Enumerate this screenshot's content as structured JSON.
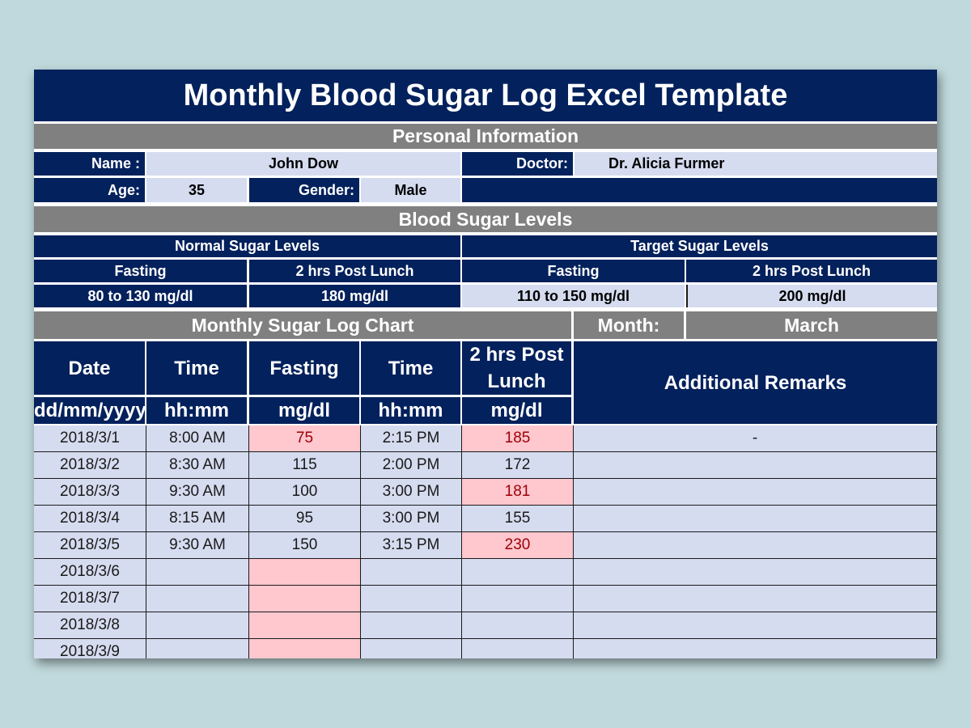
{
  "title": "Monthly Blood Sugar Log Excel Template",
  "personal": {
    "section_title": "Personal Information",
    "name_label": "Name :",
    "name_value": "John Dow",
    "doctor_label": "Doctor:",
    "doctor_value": "Dr. Alicia Furmer",
    "age_label": "Age:",
    "age_value": "35",
    "gender_label": "Gender:",
    "gender_value": "Male"
  },
  "levels": {
    "section_title": "Blood Sugar Levels",
    "normal_title": "Normal Sugar Levels",
    "target_title": "Target Sugar Levels",
    "normal_fasting_label": "Fasting",
    "normal_post_label": "2 hrs Post Lunch",
    "target_fasting_label": "Fasting",
    "target_post_label": "2 hrs Post Lunch",
    "normal_fasting_value": "80 to 130 mg/dl",
    "normal_post_value": "180 mg/dl",
    "target_fasting_value": "110 to 150 mg/dl",
    "target_post_value": "200 mg/dl"
  },
  "log": {
    "section_title": "Monthly Sugar Log Chart",
    "month_label": "Month:",
    "month_value": "March",
    "headers": {
      "date": "Date",
      "time1": "Time",
      "fasting": "Fasting",
      "time2": "Time",
      "post": "2 hrs Post Lunch",
      "remarks": "Additional Remarks"
    },
    "units": {
      "date": "dd/mm/yyyy",
      "time1": "hh:mm",
      "fasting": "mg/dl",
      "time2": "hh:mm",
      "post": "mg/dl"
    },
    "rows": [
      {
        "date": "2018/3/1",
        "time1": "8:00 AM",
        "fasting": "75",
        "time2": "2:15 PM",
        "post": "185",
        "remarks": "-",
        "fasting_flag": true,
        "post_flag": true
      },
      {
        "date": "2018/3/2",
        "time1": "8:30 AM",
        "fasting": "115",
        "time2": "2:00 PM",
        "post": "172",
        "remarks": "",
        "fasting_flag": false,
        "post_flag": false
      },
      {
        "date": "2018/3/3",
        "time1": "9:30 AM",
        "fasting": "100",
        "time2": "3:00 PM",
        "post": "181",
        "remarks": "",
        "fasting_flag": false,
        "post_flag": true
      },
      {
        "date": "2018/3/4",
        "time1": "8:15 AM",
        "fasting": "95",
        "time2": "3:00 PM",
        "post": "155",
        "remarks": "",
        "fasting_flag": false,
        "post_flag": false
      },
      {
        "date": "2018/3/5",
        "time1": "9:30 AM",
        "fasting": "150",
        "time2": "3:15 PM",
        "post": "230",
        "remarks": "",
        "fasting_flag": false,
        "post_flag": true
      },
      {
        "date": "2018/3/6",
        "time1": "",
        "fasting": "",
        "time2": "",
        "post": "",
        "remarks": "",
        "fasting_flag": true,
        "post_flag": false
      },
      {
        "date": "2018/3/7",
        "time1": "",
        "fasting": "",
        "time2": "",
        "post": "",
        "remarks": "",
        "fasting_flag": true,
        "post_flag": false
      },
      {
        "date": "2018/3/8",
        "time1": "",
        "fasting": "",
        "time2": "",
        "post": "",
        "remarks": "",
        "fasting_flag": true,
        "post_flag": false
      },
      {
        "date": "2018/3/9",
        "time1": "",
        "fasting": "",
        "time2": "",
        "post": "",
        "remarks": "",
        "fasting_flag": true,
        "post_flag": false
      }
    ]
  },
  "colors": {
    "navy": "#03215c",
    "gray": "#808080",
    "light": "#d5dcf0",
    "flag_bg": "#ffc7ce",
    "flag_text": "#9c0006",
    "background": "#bfd9dc"
  }
}
